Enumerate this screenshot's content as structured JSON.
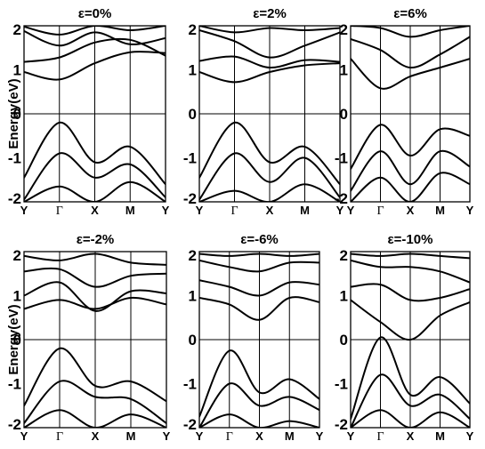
{
  "chart_data": [
    {
      "type": "line",
      "title": "ε=0%",
      "ylabel": "Energy(eV)",
      "ylim": [
        -2,
        2
      ],
      "yticks": [
        "-2",
        "-1",
        "0",
        "1",
        "2"
      ],
      "kpoints": [
        "Y",
        "Γ",
        "X",
        "M",
        "Y"
      ],
      "x": [
        0,
        0.25,
        0.5,
        0.75,
        1
      ],
      "series": [
        {
          "values": [
            1.18,
            1.28,
            1.62,
            1.68,
            1.32
          ]
        },
        {
          "values": [
            1.88,
            1.55,
            1.85,
            1.58,
            1.72
          ]
        },
        {
          "values": [
            1.98,
            1.8,
            2.0,
            1.9,
            2.0
          ]
        },
        {
          "values": [
            0.95,
            0.78,
            1.15,
            1.4,
            1.38
          ]
        },
        {
          "values": [
            -1.45,
            -0.2,
            -1.1,
            -0.75,
            -1.6
          ]
        },
        {
          "values": [
            -1.95,
            -0.9,
            -1.45,
            -1.15,
            -1.9
          ]
        },
        {
          "values": [
            -2.0,
            -1.65,
            -2.0,
            -1.55,
            -2.0
          ]
        }
      ]
    },
    {
      "type": "line",
      "title": "ε=2%",
      "ylim": [
        -2,
        2
      ],
      "yticks": [
        "-2",
        "-1",
        "0",
        "1",
        "2"
      ],
      "kpoints": [
        "Y",
        "Γ",
        "X",
        "M",
        "Y"
      ],
      "x": [
        0,
        0.25,
        0.5,
        0.75,
        1
      ],
      "series": [
        {
          "values": [
            1.2,
            1.3,
            1.05,
            1.22,
            1.18
          ]
        },
        {
          "values": [
            1.9,
            1.65,
            1.28,
            1.55,
            1.85
          ]
        },
        {
          "values": [
            2.0,
            1.85,
            1.95,
            1.9,
            1.95
          ]
        },
        {
          "values": [
            0.95,
            0.72,
            0.95,
            1.1,
            1.15
          ]
        },
        {
          "values": [
            -1.45,
            -0.2,
            -1.1,
            -0.75,
            -1.6
          ]
        },
        {
          "values": [
            -1.95,
            -0.9,
            -1.55,
            -1.0,
            -1.9
          ]
        },
        {
          "values": [
            -2.0,
            -1.75,
            -2.0,
            -1.6,
            -2.0
          ]
        }
      ]
    },
    {
      "type": "line",
      "title": "ε=6%",
      "ylim": [
        -2,
        2
      ],
      "yticks": [
        "-2",
        "-1",
        "0",
        "1",
        "2"
      ],
      "kpoints": [
        "Y",
        "Γ",
        "X",
        "M",
        "Y"
      ],
      "x": [
        0,
        0.25,
        0.5,
        0.75,
        1
      ],
      "series": [
        {
          "values": [
            1.25,
            0.58,
            0.85,
            1.05,
            1.25
          ]
        },
        {
          "values": [
            1.7,
            1.45,
            1.05,
            1.35,
            1.75
          ]
        },
        {
          "values": [
            2.0,
            1.95,
            1.75,
            1.9,
            2.0
          ]
        },
        {
          "values": [
            -1.25,
            -0.25,
            -0.95,
            -0.35,
            -0.5
          ]
        },
        {
          "values": [
            -1.75,
            -0.85,
            -1.6,
            -0.85,
            -1.2
          ]
        },
        {
          "values": [
            -2.0,
            -1.45,
            -2.0,
            -1.35,
            -1.6
          ]
        }
      ]
    },
    {
      "type": "line",
      "title": "ε=-2%",
      "ylabel": "Energy(eV)",
      "ylim": [
        -2,
        2
      ],
      "yticks": [
        "-2",
        "-1",
        "0",
        "1",
        "2"
      ],
      "kpoints": [
        "Y",
        "Γ",
        "X",
        "M",
        "Y"
      ],
      "x": [
        0,
        0.25,
        0.5,
        0.75,
        1
      ],
      "series": [
        {
          "values": [
            1.0,
            1.3,
            0.65,
            1.1,
            1.05
          ]
        },
        {
          "values": [
            1.55,
            1.6,
            1.2,
            1.45,
            1.5
          ]
        },
        {
          "values": [
            1.9,
            1.8,
            1.95,
            1.75,
            1.7
          ]
        },
        {
          "values": [
            0.7,
            0.9,
            0.7,
            0.95,
            0.8
          ]
        },
        {
          "values": [
            -1.5,
            -0.2,
            -1.05,
            -0.95,
            -1.4
          ]
        },
        {
          "values": [
            -1.9,
            -0.95,
            -1.3,
            -1.35,
            -1.9
          ]
        },
        {
          "values": [
            -2.0,
            -1.6,
            -2.0,
            -1.7,
            -2.0
          ]
        }
      ]
    },
    {
      "type": "line",
      "title": "ε=-6%",
      "ylim": [
        -2,
        2
      ],
      "yticks": [
        "-2",
        "-1",
        "0",
        "1",
        "2"
      ],
      "kpoints": [
        "Y",
        "Γ",
        "X",
        "M",
        "Y"
      ],
      "x": [
        0,
        0.25,
        0.5,
        0.75,
        1
      ],
      "series": [
        {
          "values": [
            0.95,
            0.8,
            0.45,
            0.95,
            0.85
          ]
        },
        {
          "values": [
            1.35,
            1.2,
            1.0,
            1.3,
            1.25
          ]
        },
        {
          "values": [
            1.8,
            1.65,
            1.55,
            1.75,
            1.75
          ]
        },
        {
          "values": [
            1.95,
            1.9,
            1.95,
            1.9,
            1.95
          ]
        },
        {
          "values": [
            -1.75,
            -0.25,
            -1.2,
            -0.9,
            -1.35
          ]
        },
        {
          "values": [
            -2.0,
            -1.0,
            -1.5,
            -1.3,
            -1.6
          ]
        },
        {
          "values": [
            -2.0,
            -1.7,
            -2.0,
            -1.85,
            -2.0
          ]
        }
      ]
    },
    {
      "type": "line",
      "title": "ε=-10%",
      "ylim": [
        -2,
        2
      ],
      "yticks": [
        "-2",
        "-1",
        "0",
        "1",
        "2"
      ],
      "kpoints": [
        "Y",
        "Γ",
        "X",
        "M",
        "Y"
      ],
      "x": [
        0,
        0.25,
        0.5,
        0.75,
        1
      ],
      "series": [
        {
          "values": [
            0.9,
            0.4,
            0.0,
            0.55,
            0.85
          ]
        },
        {
          "values": [
            1.2,
            1.25,
            0.9,
            0.95,
            1.15
          ]
        },
        {
          "values": [
            1.8,
            1.65,
            1.65,
            1.55,
            1.3
          ]
        },
        {
          "values": [
            1.95,
            1.9,
            1.95,
            1.9,
            1.85
          ]
        },
        {
          "values": [
            -1.8,
            0.05,
            -1.25,
            -0.85,
            -1.45
          ]
        },
        {
          "values": [
            -2.0,
            -0.8,
            -1.5,
            -1.25,
            -1.8
          ]
        },
        {
          "values": [
            -2.0,
            -1.6,
            -2.0,
            -1.65,
            -2.0
          ]
        }
      ]
    }
  ]
}
